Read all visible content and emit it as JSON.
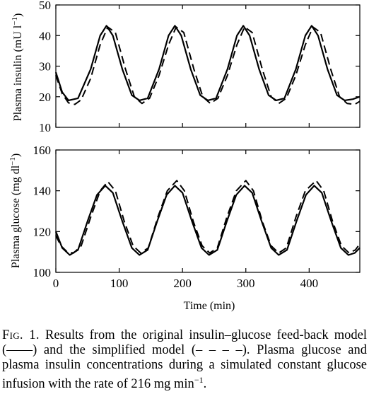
{
  "figure": {
    "x_axis_label": "Time (min)",
    "insulin_ylabel_text": "Plasma insulin (mU l",
    "insulin_ylabel_sup": "−1",
    "insulin_ylabel_close": ")",
    "glucose_ylabel_text": "Plasma glucose (mg dl",
    "glucose_ylabel_sup": "−1",
    "glucose_ylabel_close": ")"
  },
  "caption": {
    "label": "Fig. 1.",
    "text": "Results from the original insulin–glucose feed-back model (——) and the simplified model (– – – –). Plasma glucose and plasma insulin concentrations during a simulated constant glucose infusion with the rate of 216 mg min",
    "sup": "−1",
    "end": "."
  },
  "chart_data": [
    {
      "type": "line",
      "title": "",
      "xlabel": "",
      "ylabel": "Plasma insulin (mU l−1)",
      "xlim": [
        0,
        480
      ],
      "ylim": [
        10,
        50
      ],
      "x_ticks": [],
      "y_ticks": [
        10,
        20,
        30,
        40,
        50
      ],
      "grid": false,
      "series": [
        {
          "style": "solid",
          "points": [
            [
              0,
              28
            ],
            [
              10,
              21.5
            ],
            [
              20,
              18.8
            ],
            [
              35,
              19.5
            ],
            [
              55,
              29
            ],
            [
              70,
              40
            ],
            [
              80,
              43.2
            ],
            [
              90,
              40
            ],
            [
              105,
              29
            ],
            [
              120,
              20.5
            ],
            [
              132,
              18.8
            ],
            [
              145,
              19.5
            ],
            [
              163,
              29
            ],
            [
              178,
              40
            ],
            [
              188,
              43.2
            ],
            [
              198,
              40
            ],
            [
              213,
              29
            ],
            [
              228,
              20.5
            ],
            [
              240,
              18.8
            ],
            [
              253,
              19.5
            ],
            [
              271,
              29
            ],
            [
              286,
              40
            ],
            [
              296,
              43.2
            ],
            [
              306,
              40
            ],
            [
              321,
              29
            ],
            [
              336,
              20.5
            ],
            [
              348,
              18.8
            ],
            [
              361,
              19.5
            ],
            [
              379,
              29
            ],
            [
              394,
              40
            ],
            [
              404,
              43.2
            ],
            [
              414,
              40
            ],
            [
              429,
              29
            ],
            [
              444,
              20.5
            ],
            [
              456,
              18.8
            ],
            [
              469,
              19.2
            ],
            [
              480,
              20
            ]
          ]
        },
        {
          "style": "dashed",
          "points": [
            [
              0,
              27
            ],
            [
              10,
              21
            ],
            [
              20,
              18
            ],
            [
              30,
              17.5
            ],
            [
              40,
              19
            ],
            [
              55,
              26
            ],
            [
              70,
              37
            ],
            [
              82,
              42.8
            ],
            [
              94,
              41
            ],
            [
              110,
              29
            ],
            [
              124,
              20
            ],
            [
              136,
              17.8
            ],
            [
              148,
              19.5
            ],
            [
              163,
              27
            ],
            [
              178,
              37
            ],
            [
              190,
              42.8
            ],
            [
              202,
              41
            ],
            [
              218,
              29
            ],
            [
              232,
              20
            ],
            [
              244,
              17.8
            ],
            [
              256,
              19.5
            ],
            [
              271,
              27
            ],
            [
              286,
              37
            ],
            [
              298,
              42.8
            ],
            [
              310,
              41
            ],
            [
              326,
              29
            ],
            [
              340,
              20
            ],
            [
              352,
              17.8
            ],
            [
              364,
              19.5
            ],
            [
              379,
              27
            ],
            [
              394,
              37
            ],
            [
              406,
              42.8
            ],
            [
              418,
              41
            ],
            [
              434,
              29
            ],
            [
              448,
              20
            ],
            [
              460,
              17.8
            ],
            [
              472,
              17.5
            ],
            [
              480,
              18.5
            ]
          ]
        }
      ]
    },
    {
      "type": "line",
      "title": "",
      "xlabel": "Time (min)",
      "ylabel": "Plasma glucose (mg dl−1)",
      "xlim": [
        0,
        480
      ],
      "ylim": [
        100,
        160
      ],
      "x_ticks": [
        0,
        100,
        200,
        300,
        400
      ],
      "y_ticks": [
        100,
        120,
        140,
        160
      ],
      "grid": false,
      "series": [
        {
          "style": "solid",
          "points": [
            [
              0,
              120
            ],
            [
              10,
              112
            ],
            [
              22,
              108.5
            ],
            [
              35,
              111
            ],
            [
              50,
              125
            ],
            [
              65,
              138
            ],
            [
              78,
              142.5
            ],
            [
              90,
              139
            ],
            [
              105,
              125
            ],
            [
              120,
              112
            ],
            [
              132,
              108.5
            ],
            [
              145,
              111
            ],
            [
              160,
              125
            ],
            [
              175,
              138
            ],
            [
              188,
              142.5
            ],
            [
              200,
              139
            ],
            [
              215,
              125
            ],
            [
              230,
              112
            ],
            [
              242,
              108.5
            ],
            [
              255,
              111
            ],
            [
              270,
              125
            ],
            [
              285,
              138
            ],
            [
              298,
              142.5
            ],
            [
              310,
              139
            ],
            [
              325,
              125
            ],
            [
              340,
              112
            ],
            [
              352,
              108.5
            ],
            [
              365,
              111
            ],
            [
              380,
              125
            ],
            [
              395,
              138
            ],
            [
              408,
              142.5
            ],
            [
              420,
              139
            ],
            [
              435,
              125
            ],
            [
              450,
              112
            ],
            [
              462,
              108.5
            ],
            [
              472,
              109.5
            ],
            [
              480,
              112
            ]
          ]
        },
        {
          "style": "dashed",
          "points": [
            [
              0,
              118
            ],
            [
              8,
              113
            ],
            [
              18,
              110
            ],
            [
              28,
              109.5
            ],
            [
              40,
              113
            ],
            [
              55,
              127
            ],
            [
              70,
              140
            ],
            [
              82,
              144.5
            ],
            [
              94,
              140
            ],
            [
              108,
              125
            ],
            [
              122,
              113
            ],
            [
              134,
              109.5
            ],
            [
              146,
              112
            ],
            [
              161,
              127
            ],
            [
              176,
              140
            ],
            [
              191,
              145
            ],
            [
              203,
              140
            ],
            [
              217,
              125
            ],
            [
              231,
              113
            ],
            [
              243,
              109.5
            ],
            [
              255,
              112
            ],
            [
              270,
              127
            ],
            [
              285,
              140
            ],
            [
              300,
              145
            ],
            [
              312,
              140
            ],
            [
              326,
              125
            ],
            [
              340,
              113
            ],
            [
              352,
              109.5
            ],
            [
              364,
              112
            ],
            [
              379,
              127
            ],
            [
              394,
              140
            ],
            [
              411,
              145
            ],
            [
              423,
              140
            ],
            [
              437,
              125
            ],
            [
              451,
              113
            ],
            [
              463,
              109.5
            ],
            [
              473,
              111
            ],
            [
              480,
              114
            ]
          ]
        }
      ]
    }
  ]
}
